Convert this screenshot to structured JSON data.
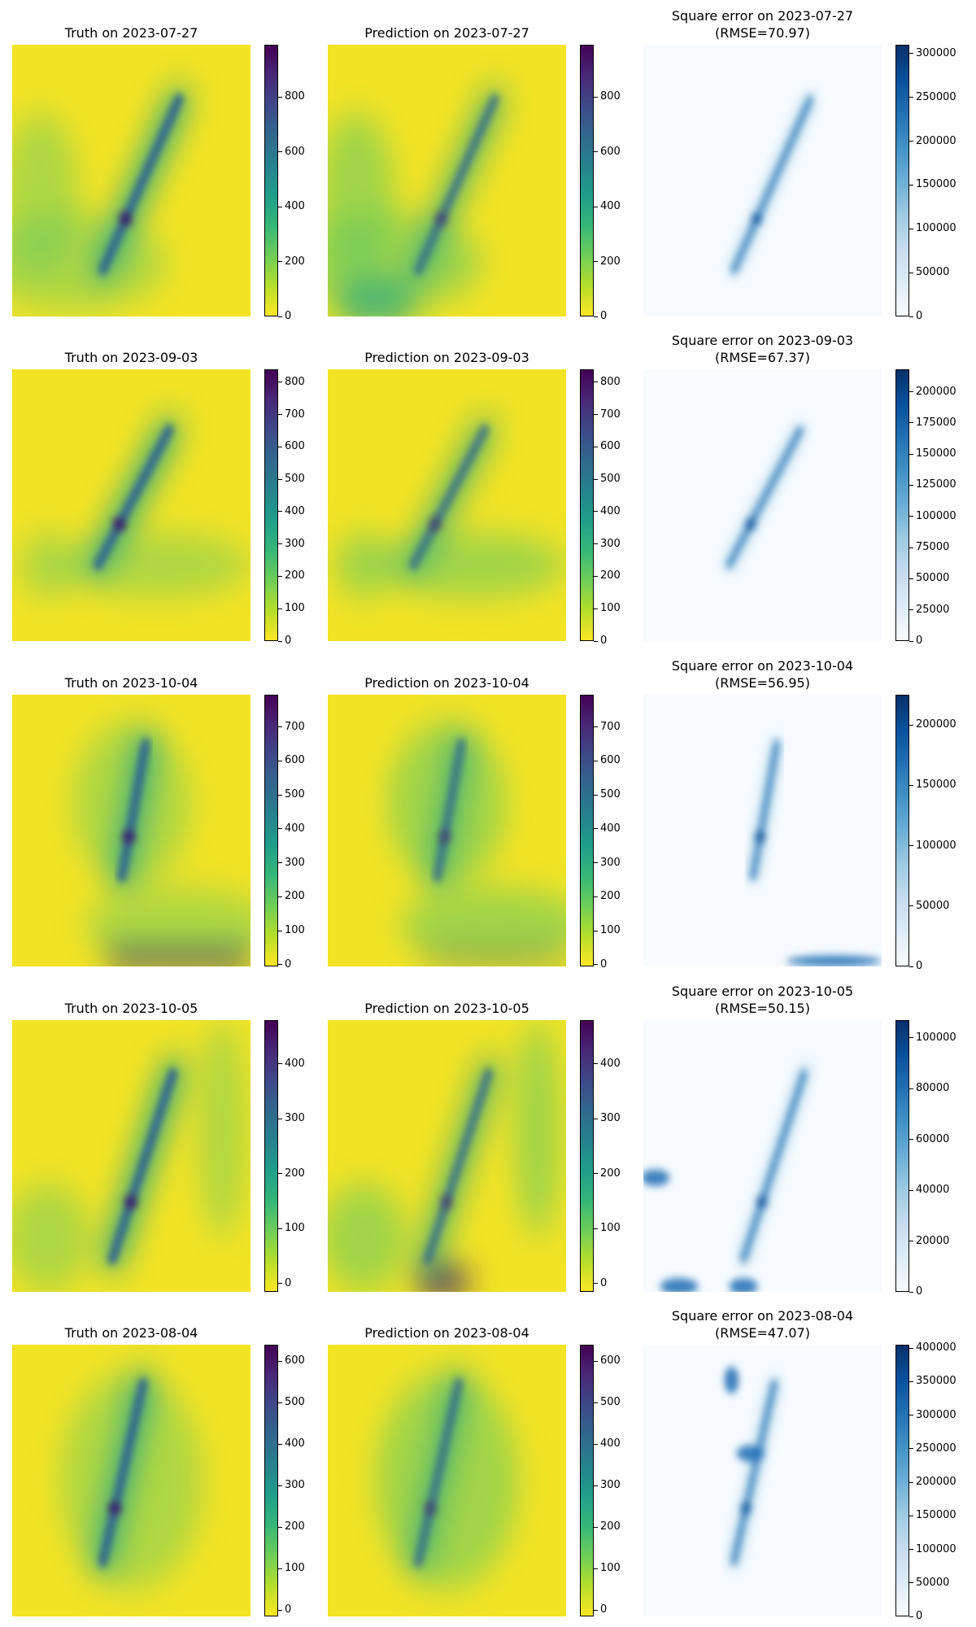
{
  "chart_data": [
    {
      "type": "heatmap",
      "date": "2023-07-27",
      "colormaps": {
        "truth": "viridis_r",
        "prediction": "viridis_r",
        "error": "Blues"
      },
      "truth": {
        "title": "Truth on 2023-07-27",
        "ticks": [
          "0",
          "200",
          "400",
          "600",
          "800"
        ],
        "range": [
          0,
          990
        ]
      },
      "prediction": {
        "title": "Prediction on 2023-07-27",
        "ticks": [
          "0",
          "200",
          "400",
          "600",
          "800"
        ],
        "range": [
          0,
          990
        ]
      },
      "error": {
        "title": "Square error on 2023-07-27",
        "rmse_label": "(RMSE=70.97)",
        "rmse": 70.97,
        "ticks": [
          "0",
          "50000",
          "100000",
          "150000",
          "200000",
          "250000",
          "300000"
        ],
        "range": [
          0,
          310000
        ]
      }
    },
    {
      "type": "heatmap",
      "date": "2023-09-03",
      "colormaps": {
        "truth": "viridis_r",
        "prediction": "viridis_r",
        "error": "Blues"
      },
      "truth": {
        "title": "Truth on 2023-09-03",
        "ticks": [
          "0",
          "100",
          "200",
          "300",
          "400",
          "500",
          "600",
          "700",
          "800"
        ],
        "range": [
          0,
          840
        ]
      },
      "prediction": {
        "title": "Prediction on 2023-09-03",
        "ticks": [
          "0",
          "100",
          "200",
          "300",
          "400",
          "500",
          "600",
          "700",
          "800"
        ],
        "range": [
          0,
          840
        ]
      },
      "error": {
        "title": "Square error on 2023-09-03",
        "rmse_label": "(RMSE=67.37)",
        "rmse": 67.37,
        "ticks": [
          "0",
          "25000",
          "50000",
          "75000",
          "100000",
          "125000",
          "150000",
          "175000",
          "200000"
        ],
        "range": [
          0,
          218000
        ]
      }
    },
    {
      "type": "heatmap",
      "date": "2023-10-04",
      "colormaps": {
        "truth": "viridis_r",
        "prediction": "viridis_r",
        "error": "Blues"
      },
      "truth": {
        "title": "Truth on 2023-10-04",
        "ticks": [
          "0",
          "100",
          "200",
          "300",
          "400",
          "500",
          "600",
          "700"
        ],
        "range": [
          -5,
          795
        ]
      },
      "prediction": {
        "title": "Prediction on 2023-10-04",
        "ticks": [
          "0",
          "100",
          "200",
          "300",
          "400",
          "500",
          "600",
          "700"
        ],
        "range": [
          -5,
          795
        ]
      },
      "error": {
        "title": "Square error on 2023-10-04",
        "rmse_label": "(RMSE=56.95)",
        "rmse": 56.95,
        "ticks": [
          "0",
          "50000",
          "100000",
          "150000",
          "200000"
        ],
        "range": [
          0,
          225000
        ]
      }
    },
    {
      "type": "heatmap",
      "date": "2023-10-05",
      "colormaps": {
        "truth": "viridis_r",
        "prediction": "viridis_r",
        "error": "Blues"
      },
      "truth": {
        "title": "Truth on 2023-10-05",
        "ticks": [
          "0",
          "100",
          "200",
          "300",
          "400"
        ],
        "range": [
          -15,
          480
        ]
      },
      "prediction": {
        "title": "Prediction on 2023-10-05",
        "ticks": [
          "0",
          "100",
          "200",
          "300",
          "400"
        ],
        "range": [
          -15,
          480
        ]
      },
      "error": {
        "title": "Square error on 2023-10-05",
        "rmse_label": "(RMSE=50.15)",
        "rmse": 50.15,
        "ticks": [
          "0",
          "20000",
          "40000",
          "60000",
          "80000",
          "100000"
        ],
        "range": [
          0,
          107000
        ]
      }
    },
    {
      "type": "heatmap",
      "date": "2023-08-04",
      "colormaps": {
        "truth": "viridis_r",
        "prediction": "viridis_r",
        "error": "Blues"
      },
      "truth": {
        "title": "Truth on 2023-08-04",
        "ticks": [
          "0",
          "100",
          "200",
          "300",
          "400",
          "500",
          "600"
        ],
        "range": [
          -15,
          640
        ]
      },
      "prediction": {
        "title": "Prediction on 2023-08-04",
        "ticks": [
          "0",
          "100",
          "200",
          "300",
          "400",
          "500",
          "600"
        ],
        "range": [
          -15,
          640
        ]
      },
      "error": {
        "title": "Square error on 2023-08-04",
        "rmse_label": "(RMSE=47.07)",
        "rmse": 47.07,
        "ticks": [
          "0",
          "50000",
          "100000",
          "150000",
          "200000",
          "250000",
          "300000",
          "350000",
          "400000"
        ],
        "range": [
          0,
          405000
        ]
      }
    }
  ]
}
